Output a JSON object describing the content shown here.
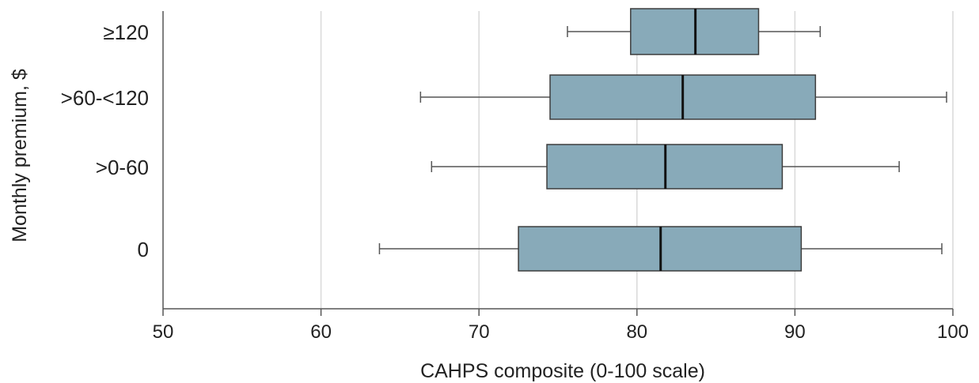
{
  "chart_data": {
    "type": "box",
    "orientation": "horizontal",
    "xlabel": "CAHPS composite (0-100 scale)",
    "ylabel": "Monthly premium, $",
    "xlim": [
      50,
      100
    ],
    "xticks": [
      50,
      60,
      70,
      80,
      90,
      100
    ],
    "grid": true,
    "box_color": "#88aab9",
    "median_color": "#111111",
    "categories": [
      "0",
      ">0-60",
      ">60-<120",
      "≥120"
    ],
    "boxes": [
      {
        "category": "0",
        "whisker_low": 63.7,
        "q1": 72.5,
        "median": 81.5,
        "q3": 90.4,
        "whisker_high": 99.3
      },
      {
        "category": ">0-60",
        "whisker_low": 67.0,
        "q1": 74.3,
        "median": 81.8,
        "q3": 89.2,
        "whisker_high": 96.6
      },
      {
        "category": ">60-<120",
        "whisker_low": 66.3,
        "q1": 74.5,
        "median": 82.9,
        "q3": 91.3,
        "whisker_high": 99.6
      },
      {
        "category": "≥120",
        "whisker_low": 75.6,
        "q1": 79.6,
        "median": 83.7,
        "q3": 87.7,
        "whisker_high": 91.6
      }
    ]
  }
}
